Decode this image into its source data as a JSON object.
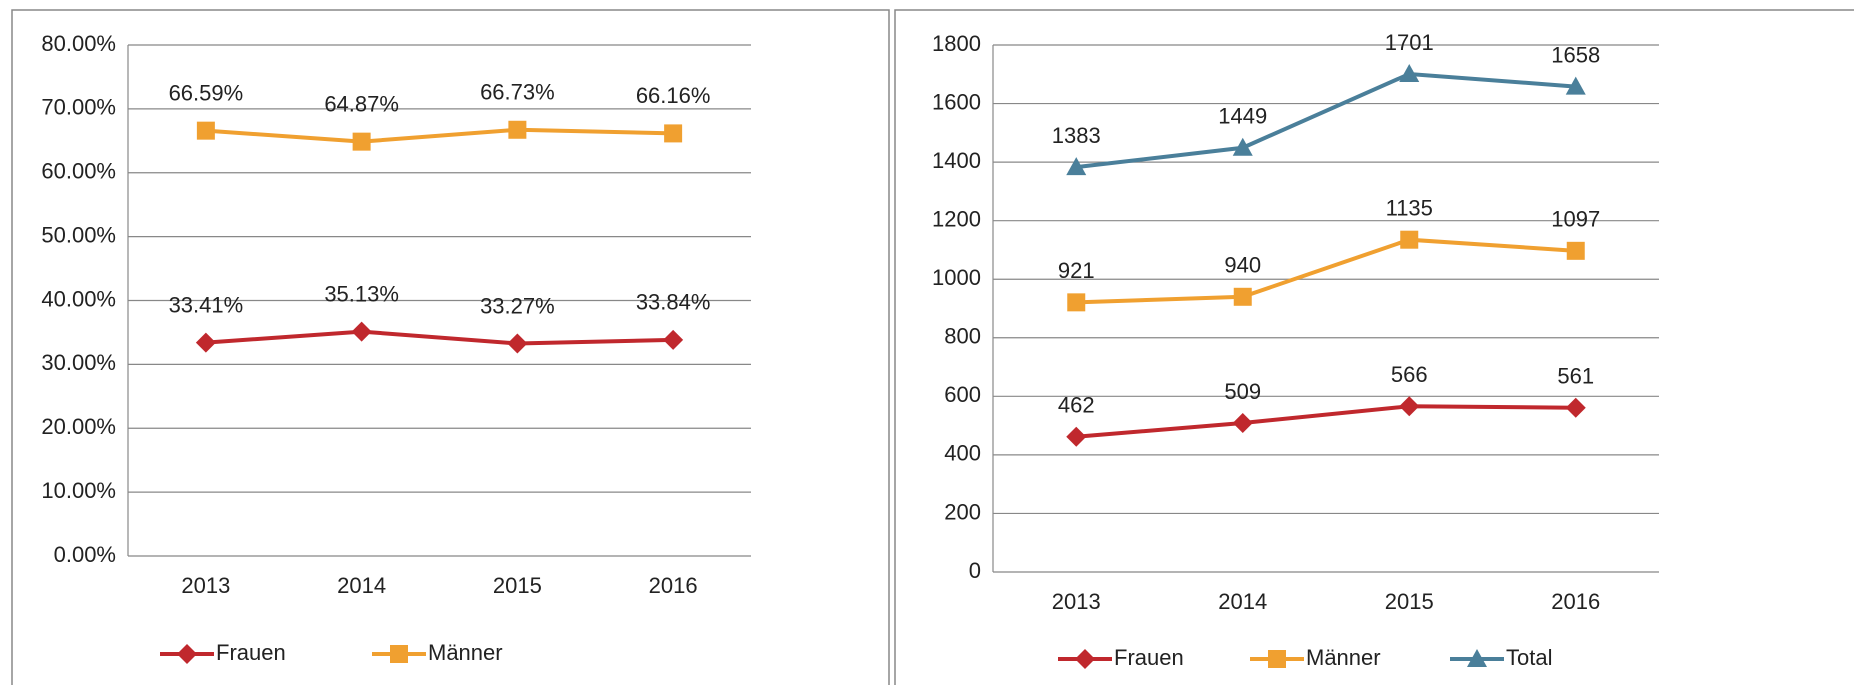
{
  "chart_data": [
    {
      "type": "line",
      "categories": [
        "2013",
        "2014",
        "2015",
        "2016"
      ],
      "series": [
        {
          "name": "Frauen",
          "color": "#c0282d",
          "marker": "diamond",
          "values": [
            33.41,
            35.13,
            33.27,
            33.84
          ],
          "value_labels": [
            "33.41%",
            "35.13%",
            "33.27%",
            "33.84%"
          ]
        },
        {
          "name": "Männer",
          "color": "#f0a030",
          "marker": "square",
          "values": [
            66.59,
            64.87,
            66.73,
            66.16
          ],
          "value_labels": [
            "66.59%",
            "64.87%",
            "66.73%",
            "66.16%"
          ]
        }
      ],
      "ylim": [
        0,
        80
      ],
      "yticks": [
        {
          "value": 0,
          "label": "0.00%"
        },
        {
          "value": 10,
          "label": "10.00%"
        },
        {
          "value": 20,
          "label": "20.00%"
        },
        {
          "value": 30,
          "label": "30.00%"
        },
        {
          "value": 40,
          "label": "40.00%"
        },
        {
          "value": 50,
          "label": "50.00%"
        },
        {
          "value": 60,
          "label": "60.00%"
        },
        {
          "value": 70,
          "label": "70.00%"
        },
        {
          "value": 80,
          "label": "80.00%"
        }
      ],
      "grid": true,
      "legend": "bottom"
    },
    {
      "type": "line",
      "categories": [
        "2013",
        "2014",
        "2015",
        "2016"
      ],
      "series": [
        {
          "name": "Frauen",
          "color": "#c0282d",
          "marker": "diamond",
          "values": [
            462,
            509,
            566,
            561
          ]
        },
        {
          "name": "Männer",
          "color": "#f0a030",
          "marker": "square",
          "values": [
            921,
            940,
            1135,
            1097
          ]
        },
        {
          "name": "Total",
          "color": "#4a7f9a",
          "marker": "triangle",
          "values": [
            1383,
            1449,
            1701,
            1658
          ]
        }
      ],
      "ylim": [
        0,
        1800
      ],
      "yticks": [
        0,
        200,
        400,
        600,
        800,
        1000,
        1200,
        1400,
        1600,
        1800
      ],
      "grid": true,
      "legend": "bottom"
    }
  ]
}
